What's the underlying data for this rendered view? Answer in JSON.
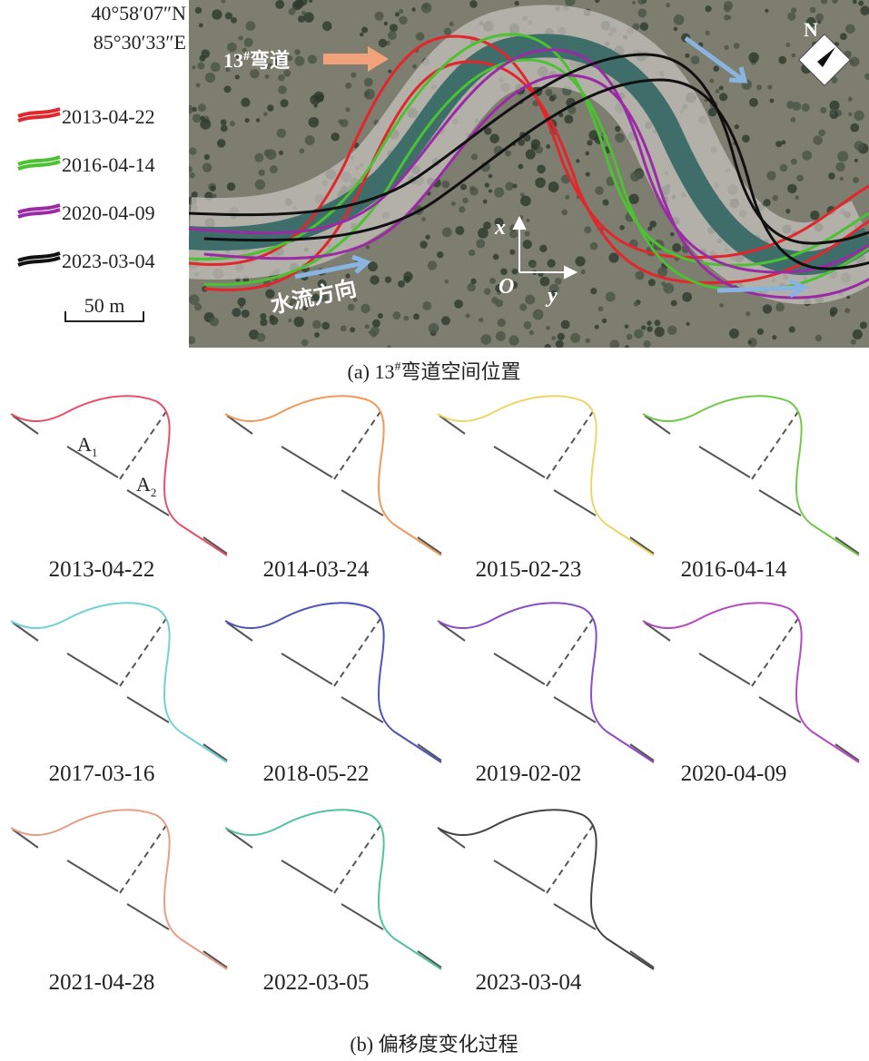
{
  "coordinates": [
    "40°58′07″N",
    "85°30′33″E"
  ],
  "legend": [
    {
      "label": "2013-04-22",
      "color": "#e3262b"
    },
    {
      "label": "2016-04-14",
      "color": "#4cc131"
    },
    {
      "label": "2020-04-09",
      "color": "#9b2aa6"
    },
    {
      "label": "2023-03-04",
      "color": "#111111"
    }
  ],
  "scale_bar": "50 m",
  "map_labels": {
    "bend": {
      "number": "13",
      "superscript": "#",
      "text": "弯道"
    },
    "flow_direction": "水流方向",
    "axis_x": "x",
    "axis_y": "y",
    "origin": "O",
    "north": "N"
  },
  "caption_a": {
    "prefix": "(a) 13",
    "superscript": "#",
    "text": "弯道空间位置"
  },
  "panels": [
    {
      "date": "2013-04-22",
      "color": "#e8506a"
    },
    {
      "date": "2014-03-24",
      "color": "#f09a5a"
    },
    {
      "date": "2015-02-23",
      "color": "#ecd66a"
    },
    {
      "date": "2016-04-14",
      "color": "#72c94a"
    },
    {
      "date": "2017-03-16",
      "color": "#6fd2d6"
    },
    {
      "date": "2018-05-22",
      "color": "#4b55b8"
    },
    {
      "date": "2019-02-02",
      "color": "#8a4cc8"
    },
    {
      "date": "2020-04-09",
      "color": "#b64ac0"
    },
    {
      "date": "2021-04-28",
      "color": "#e89e86"
    },
    {
      "date": "2022-03-05",
      "color": "#52c49a"
    },
    {
      "date": "2023-03-04",
      "color": "#444444"
    }
  ],
  "segment_labels": [
    {
      "base": "A",
      "sub": "1"
    },
    {
      "base": "A",
      "sub": "2"
    }
  ],
  "caption_b": "(b) 偏移度变化过程"
}
